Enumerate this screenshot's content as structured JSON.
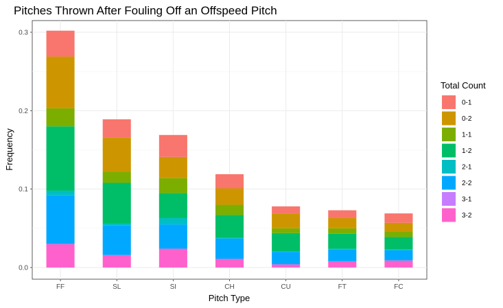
{
  "chart_data": {
    "type": "bar",
    "stacked": true,
    "title": "Pitches Thrown After Fouling Off an Offspeed Pitch",
    "xlabel": "Pitch Type",
    "ylabel": "Frequency",
    "ylim": [
      0,
      0.315
    ],
    "yticks": [
      0.0,
      0.1,
      0.2,
      0.3
    ],
    "ytick_labels": [
      "0.0",
      "0.1",
      "0.2",
      "0.3"
    ],
    "grid": true,
    "legend_title": "Total Count",
    "legend_position": "right",
    "categories": [
      "FF",
      "SL",
      "SI",
      "CH",
      "CU",
      "FT",
      "FC"
    ],
    "series": [
      {
        "name": "0-1",
        "color": "#F8766D",
        "values": [
          0.033,
          0.023,
          0.028,
          0.018,
          0.009,
          0.01,
          0.012
        ]
      },
      {
        "name": "0-2",
        "color": "#CD9600",
        "values": [
          0.066,
          0.044,
          0.027,
          0.021,
          0.019,
          0.013,
          0.011
        ]
      },
      {
        "name": "1-1",
        "color": "#7CAE00",
        "values": [
          0.023,
          0.014,
          0.019,
          0.013,
          0.006,
          0.007,
          0.007
        ]
      },
      {
        "name": "1-2",
        "color": "#00BE67",
        "values": [
          0.082,
          0.052,
          0.032,
          0.029,
          0.023,
          0.019,
          0.016
        ]
      },
      {
        "name": "2-1",
        "color": "#00BFC4",
        "values": [
          0.006,
          0.002,
          0.008,
          0.001,
          0.001,
          0.001,
          0.001
        ]
      },
      {
        "name": "2-2",
        "color": "#00A9FF",
        "values": [
          0.062,
          0.038,
          0.031,
          0.026,
          0.016,
          0.015,
          0.013
        ]
      },
      {
        "name": "3-1",
        "color": "#C77CFF",
        "values": [
          0.0,
          0.0,
          0.0,
          0.0,
          0.0,
          0.0,
          0.0
        ]
      },
      {
        "name": "3-2",
        "color": "#FF61CC",
        "values": [
          0.03,
          0.016,
          0.024,
          0.011,
          0.004,
          0.008,
          0.009
        ]
      }
    ]
  }
}
